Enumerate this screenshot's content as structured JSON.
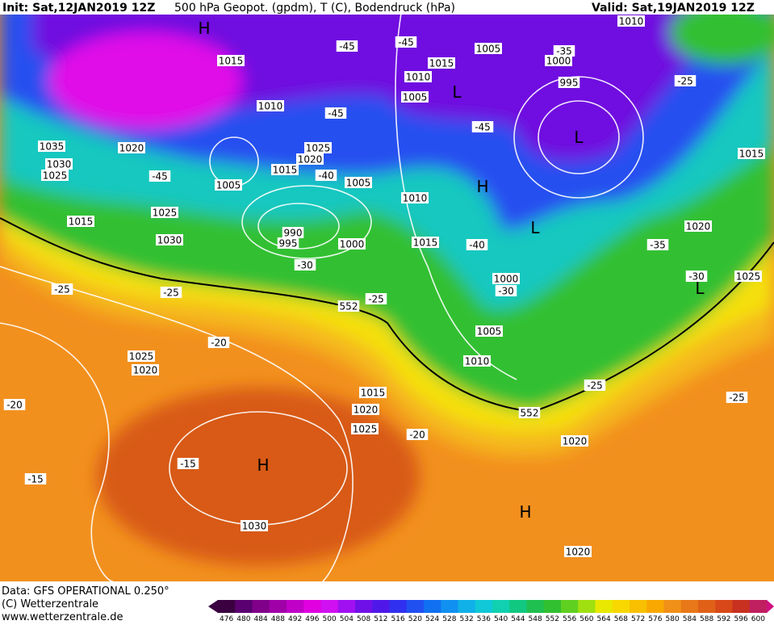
{
  "header": {
    "init": "Init: Sat,12JAN2019 12Z",
    "title": "500 hPa Geopot. (gpdm), T (C), Bodendruck (hPa)",
    "valid": "Valid: Sat,19JAN2019 12Z"
  },
  "footer": {
    "data": "Data: GFS OPERATIONAL 0.250°",
    "copyright": "(C) Wetterzentrale",
    "url": "www.wetterzentrale.de"
  },
  "colorbar": {
    "ticks": [
      476,
      480,
      484,
      488,
      492,
      496,
      500,
      504,
      508,
      512,
      516,
      520,
      524,
      528,
      532,
      536,
      540,
      544,
      548,
      552,
      556,
      560,
      564,
      568,
      572,
      576,
      580,
      584,
      588,
      592,
      596,
      600
    ]
  },
  "map": {
    "pressure_labels": [
      "1010",
      "1015",
      "1005",
      "1015",
      "1000",
      "1010",
      "995",
      "1005",
      "1010",
      "1035",
      "1020",
      "1025",
      "1020",
      "1030",
      "1015",
      "1025",
      "1005",
      "1005",
      "1010",
      "1025",
      "1015",
      "1020",
      "1030",
      "995",
      "1015",
      "1000",
      "1000",
      "1025",
      "1005",
      "1010",
      "1025",
      "1020",
      "1015",
      "1020",
      "1025",
      "1020",
      "1030",
      "1020",
      "990",
      "1015"
    ],
    "temperature_labels": [
      "-45",
      "-45",
      "-35",
      "-25",
      "-45",
      "-45",
      "-45",
      "-40",
      "-40",
      "-35",
      "-30",
      "-30",
      "-30",
      "-25",
      "-25",
      "-25",
      "-20",
      "-25",
      "-25",
      "-20",
      "-20",
      "-15",
      "-15"
    ],
    "contour_labels": [
      "552",
      "552"
    ],
    "centers": [
      "H",
      "L",
      "L",
      "H",
      "L",
      "L",
      "H",
      "H"
    ]
  }
}
